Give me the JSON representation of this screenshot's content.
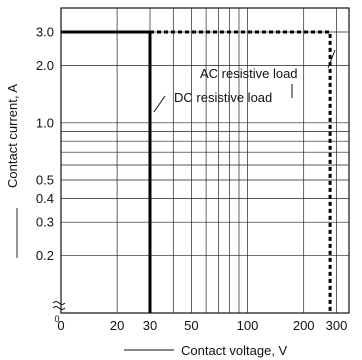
{
  "chart_data": {
    "type": "line",
    "x_scale": "log",
    "y_scale": "log",
    "grid": true,
    "xlim": [
      10,
      350
    ],
    "ylim": [
      0.1,
      3.0
    ],
    "xlabel": "Contact voltage, V",
    "ylabel": "Contact current, A",
    "x_zero_label": "0",
    "y_zero_label": "0",
    "x_ticks": [
      {
        "value": 20,
        "label": "20"
      },
      {
        "value": 30,
        "label": "30"
      },
      {
        "value": 50,
        "label": "50"
      },
      {
        "value": 100,
        "label": "100"
      },
      {
        "value": 200,
        "label": "200"
      },
      {
        "value": 300,
        "label": "300"
      }
    ],
    "x_grid": [
      20,
      30,
      40,
      50,
      60,
      70,
      80,
      90,
      100,
      200,
      300
    ],
    "y_ticks": [
      {
        "value": 0.2,
        "label": "0.2"
      },
      {
        "value": 0.3,
        "label": "0.3"
      },
      {
        "value": 0.4,
        "label": "0.4"
      },
      {
        "value": 0.5,
        "label": "0.5"
      },
      {
        "value": 1.0,
        "label": "1.0"
      },
      {
        "value": 2.0,
        "label": "2.0"
      },
      {
        "value": 3.0,
        "label": "3.0"
      }
    ],
    "y_grid": [
      0.2,
      0.3,
      0.4,
      0.5,
      0.6,
      0.7,
      0.8,
      0.9,
      1.0,
      2.0,
      3.0
    ],
    "series": [
      {
        "name": "DC resistive load",
        "style": "solid",
        "color": "#000000",
        "x": [
          10,
          30,
          30
        ],
        "y": [
          3.0,
          3.0,
          0.1
        ]
      },
      {
        "name": "AC resistive load",
        "style": "dashed",
        "color": "#000000",
        "x": [
          30,
          277,
          277
        ],
        "y": [
          3.0,
          3.0,
          0.1
        ]
      }
    ]
  }
}
